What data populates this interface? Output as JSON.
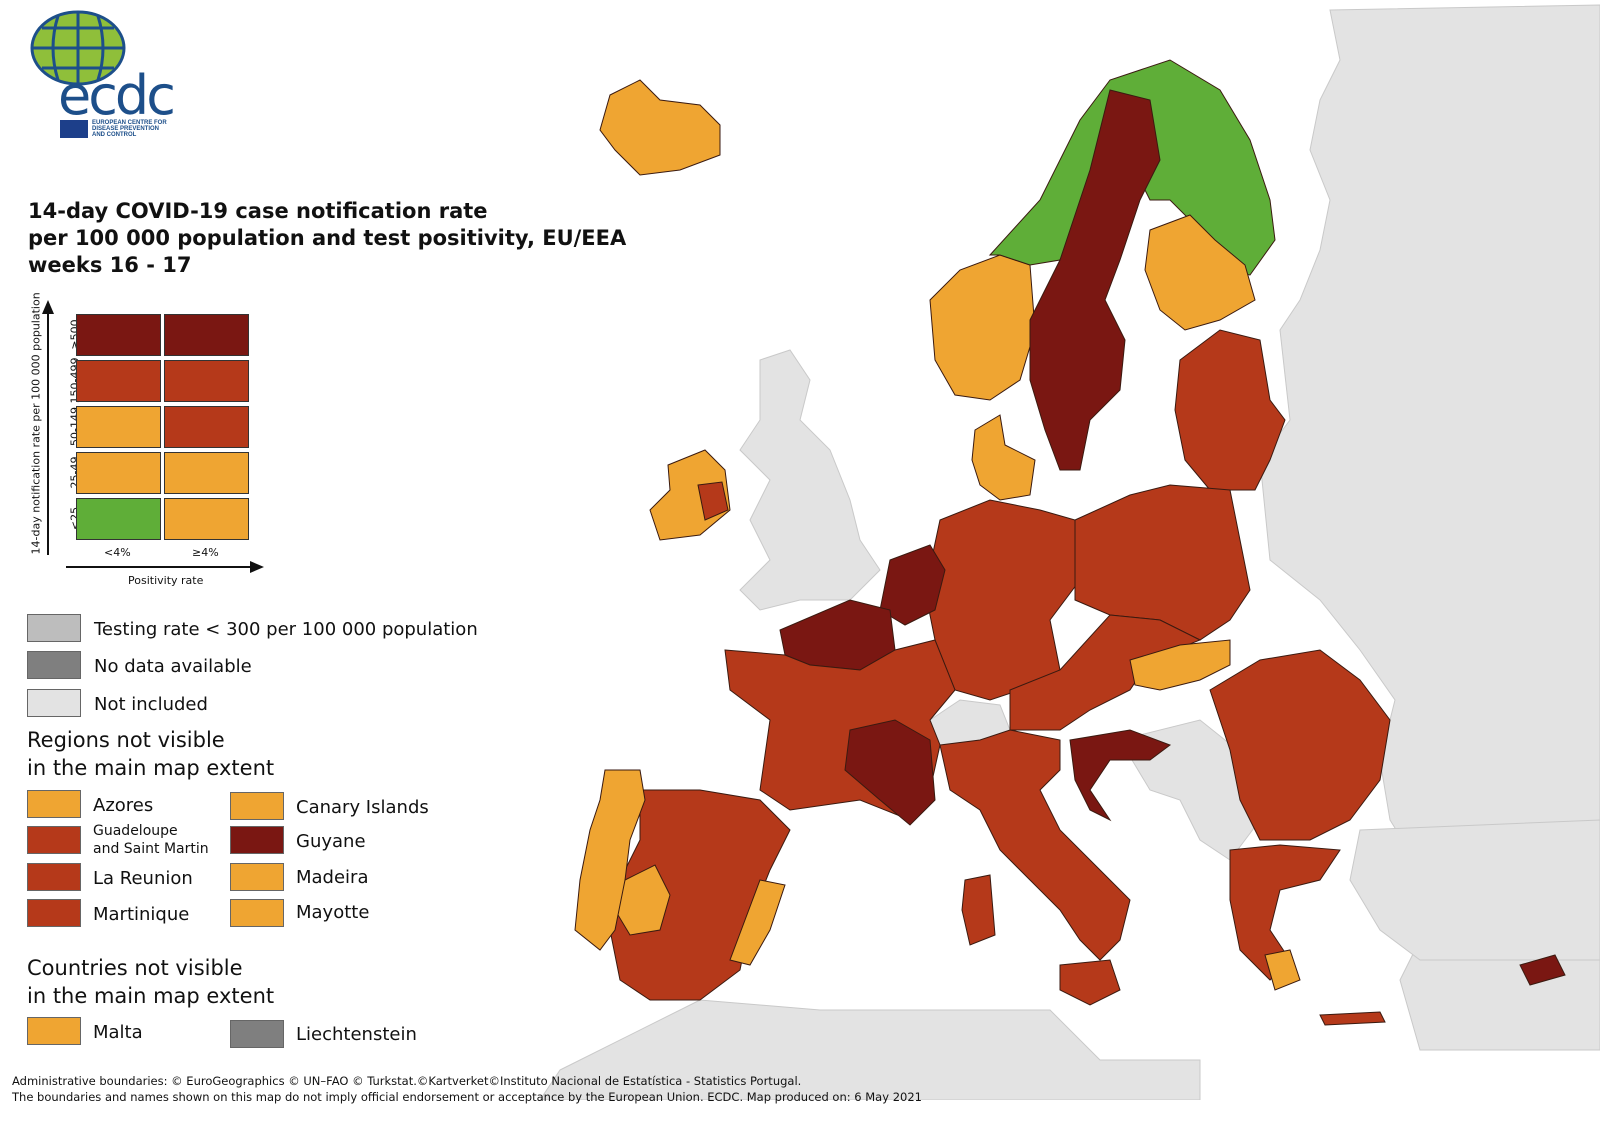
{
  "logo": {
    "wordmark": "ecdc",
    "subtitle_lines": [
      "EUROPEAN CENTRE FOR",
      "DISEASE PREVENTION",
      "AND CONTROL"
    ]
  },
  "title_lines": [
    "14-day COVID-19 case notification rate",
    "per 100 000 population and test positivity, EU/EEA",
    "weeks 16 - 17"
  ],
  "matrix": {
    "y_axis_label": "14-day notification rate per 100 000 population",
    "x_axis_label": "Positivity rate",
    "row_labels": [
      "≥500",
      "150-499",
      "50-149",
      "25-49",
      "<25"
    ],
    "col_labels": [
      "<4%",
      "≥4%"
    ],
    "colors": {
      "dark_red": "#7a1712",
      "red": "#b5391a",
      "orange": "#efa532",
      "green": "#5fae38",
      "grey_testing": "#bdbdbd",
      "grey_nodata": "#7f7f7f",
      "grey_not_included": "#e3e3e3"
    },
    "cells": [
      [
        "dark_red",
        "dark_red"
      ],
      [
        "red",
        "red"
      ],
      [
        "orange",
        "red"
      ],
      [
        "orange",
        "orange"
      ],
      [
        "green",
        "orange"
      ]
    ]
  },
  "legend": [
    {
      "label": "Testing rate < 300 per 100 000 population",
      "color": "grey_testing"
    },
    {
      "label": "No data available",
      "color": "grey_nodata"
    },
    {
      "label": "Not included",
      "color": "grey_not_included"
    }
  ],
  "regions_heading": [
    "Regions not visible",
    "in the main map extent"
  ],
  "regions": [
    {
      "label": "Azores",
      "color": "orange"
    },
    {
      "label": "Canary Islands",
      "color": "orange"
    },
    {
      "label": "Guadeloupe and Saint Martin",
      "label_lines": [
        "Guadeloupe",
        "and Saint Martin"
      ],
      "color": "red"
    },
    {
      "label": "Guyane",
      "color": "dark_red"
    },
    {
      "label": "La Reunion",
      "color": "red"
    },
    {
      "label": "Madeira",
      "color": "orange"
    },
    {
      "label": "Martinique",
      "color": "red"
    },
    {
      "label": "Mayotte",
      "color": "orange"
    }
  ],
  "countries_heading": [
    "Countries not visible",
    "in the main map extent"
  ],
  "countries": [
    {
      "label": "Malta",
      "color": "orange"
    },
    {
      "label": "Liechtenstein",
      "color": "grey_nodata"
    }
  ],
  "footer_lines": [
    "Administrative boundaries: © EuroGeographics © UN–FAO © Turkstat.©Kartverket©Instituto Nacional de Estatística - Statistics Portugal.",
    "The boundaries and names shown on this map do not imply official endorsement or acceptance by the European Union. ECDC. Map produced on: 6 May 2021"
  ],
  "map_regions": [
    {
      "region": "Iceland",
      "color": "orange"
    },
    {
      "region": "Norway",
      "color": "orange"
    },
    {
      "region": "Sweden",
      "color": "dark_red"
    },
    {
      "region": "Finland",
      "color": "orange"
    },
    {
      "region": "Northern Scandinavia",
      "color": "green"
    },
    {
      "region": "Ireland",
      "color": "orange"
    },
    {
      "region": "Denmark",
      "color": "orange"
    },
    {
      "region": "Estonia, Latvia, Lithuania",
      "color": "red"
    },
    {
      "region": "Poland",
      "color": "red"
    },
    {
      "region": "Germany",
      "color": "red"
    },
    {
      "region": "Netherlands and Belgium",
      "color": "dark_red"
    },
    {
      "region": "France",
      "color": "red"
    },
    {
      "region": "Spain",
      "color": "red"
    },
    {
      "region": "Portugal",
      "color": "orange"
    },
    {
      "region": "Italy",
      "color": "red"
    },
    {
      "region": "Austria, Czechia, Slovakia",
      "color": "red"
    },
    {
      "region": "Hungary",
      "color": "orange"
    },
    {
      "region": "Croatia",
      "color": "dark_red"
    },
    {
      "region": "Romania and Bulgaria",
      "color": "red"
    },
    {
      "region": "Greece",
      "color": "red"
    },
    {
      "region": "Cyprus",
      "color": "dark_red"
    },
    {
      "region": "Switzerland",
      "color": "grey_not_included"
    },
    {
      "region": "United Kingdom",
      "color": "grey_not_included"
    }
  ]
}
